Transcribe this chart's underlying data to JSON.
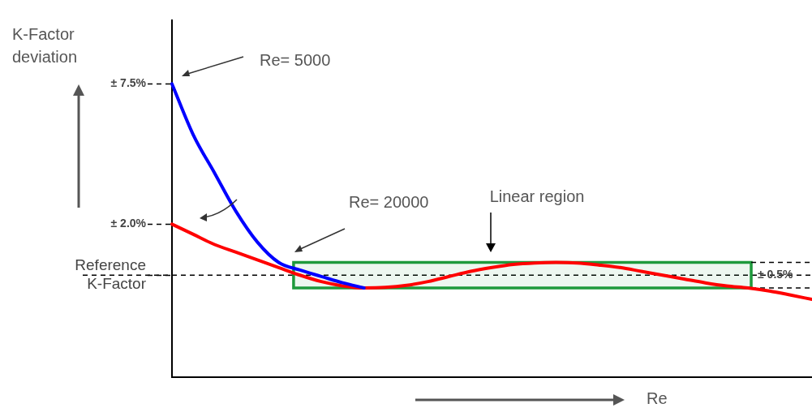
{
  "chart_data": {
    "type": "line",
    "relative": false,
    "xlabel": "Re",
    "ylabel": "K-Factor deviation",
    "categories": [
      null,
      null,
      null,
      null,
      null,
      null,
      null,
      null,
      null,
      null,
      null,
      null,
      null,
      null,
      null,
      null,
      null,
      null,
      null,
      null,
      null,
      null,
      null,
      null,
      null,
      null,
      null,
      null,
      null,
      null,
      null
    ],
    "series": [
      {
        "color": "#0000ff",
        "values": [
          7.5,
          5.5,
          4.0,
          2.5,
          1.3,
          0.5,
          0.2,
          -0.05,
          -0.3,
          -0.5,
          null,
          null,
          null,
          null,
          null,
          null,
          null,
          null,
          null,
          null,
          null,
          null,
          null,
          null,
          null,
          null,
          null,
          null,
          null,
          null,
          null
        ]
      },
      {
        "color": "#ff0000",
        "values": [
          2.0,
          1.6,
          1.2,
          0.9,
          0.6,
          0.3,
          0.0,
          -0.25,
          -0.42,
          -0.5,
          -0.48,
          -0.4,
          -0.25,
          -0.05,
          0.15,
          0.3,
          0.42,
          0.48,
          0.5,
          0.48,
          0.4,
          0.3,
          0.15,
          0.0,
          -0.15,
          -0.3,
          -0.42,
          -0.5,
          -0.62,
          -0.78,
          -0.95
        ]
      }
    ],
    "ylim": [
      -4,
      10
    ],
    "yticks": [
      {
        "value": 7.5,
        "label": "± 7.5%"
      },
      {
        "value": 2,
        "label": "± 2.0%"
      },
      {
        "value": 0,
        "label": "Reference K-Factor"
      }
    ],
    "tick_labels": "y",
    "grid": false,
    "legend": false,
    "marker": "none",
    "line_style": "solid",
    "ref_lines": [
      {
        "axis": "y",
        "value": 0,
        "line_style": "dashed",
        "color": "#000000"
      }
    ],
    "bands": [
      {
        "axis": "y",
        "from": -0.5,
        "to": 0.5,
        "label": "± 0.5%",
        "color": "#1e9a3c"
      }
    ],
    "annotations": [
      "Re= 5000",
      "Re= 20000",
      "Linear region"
    ]
  }
}
